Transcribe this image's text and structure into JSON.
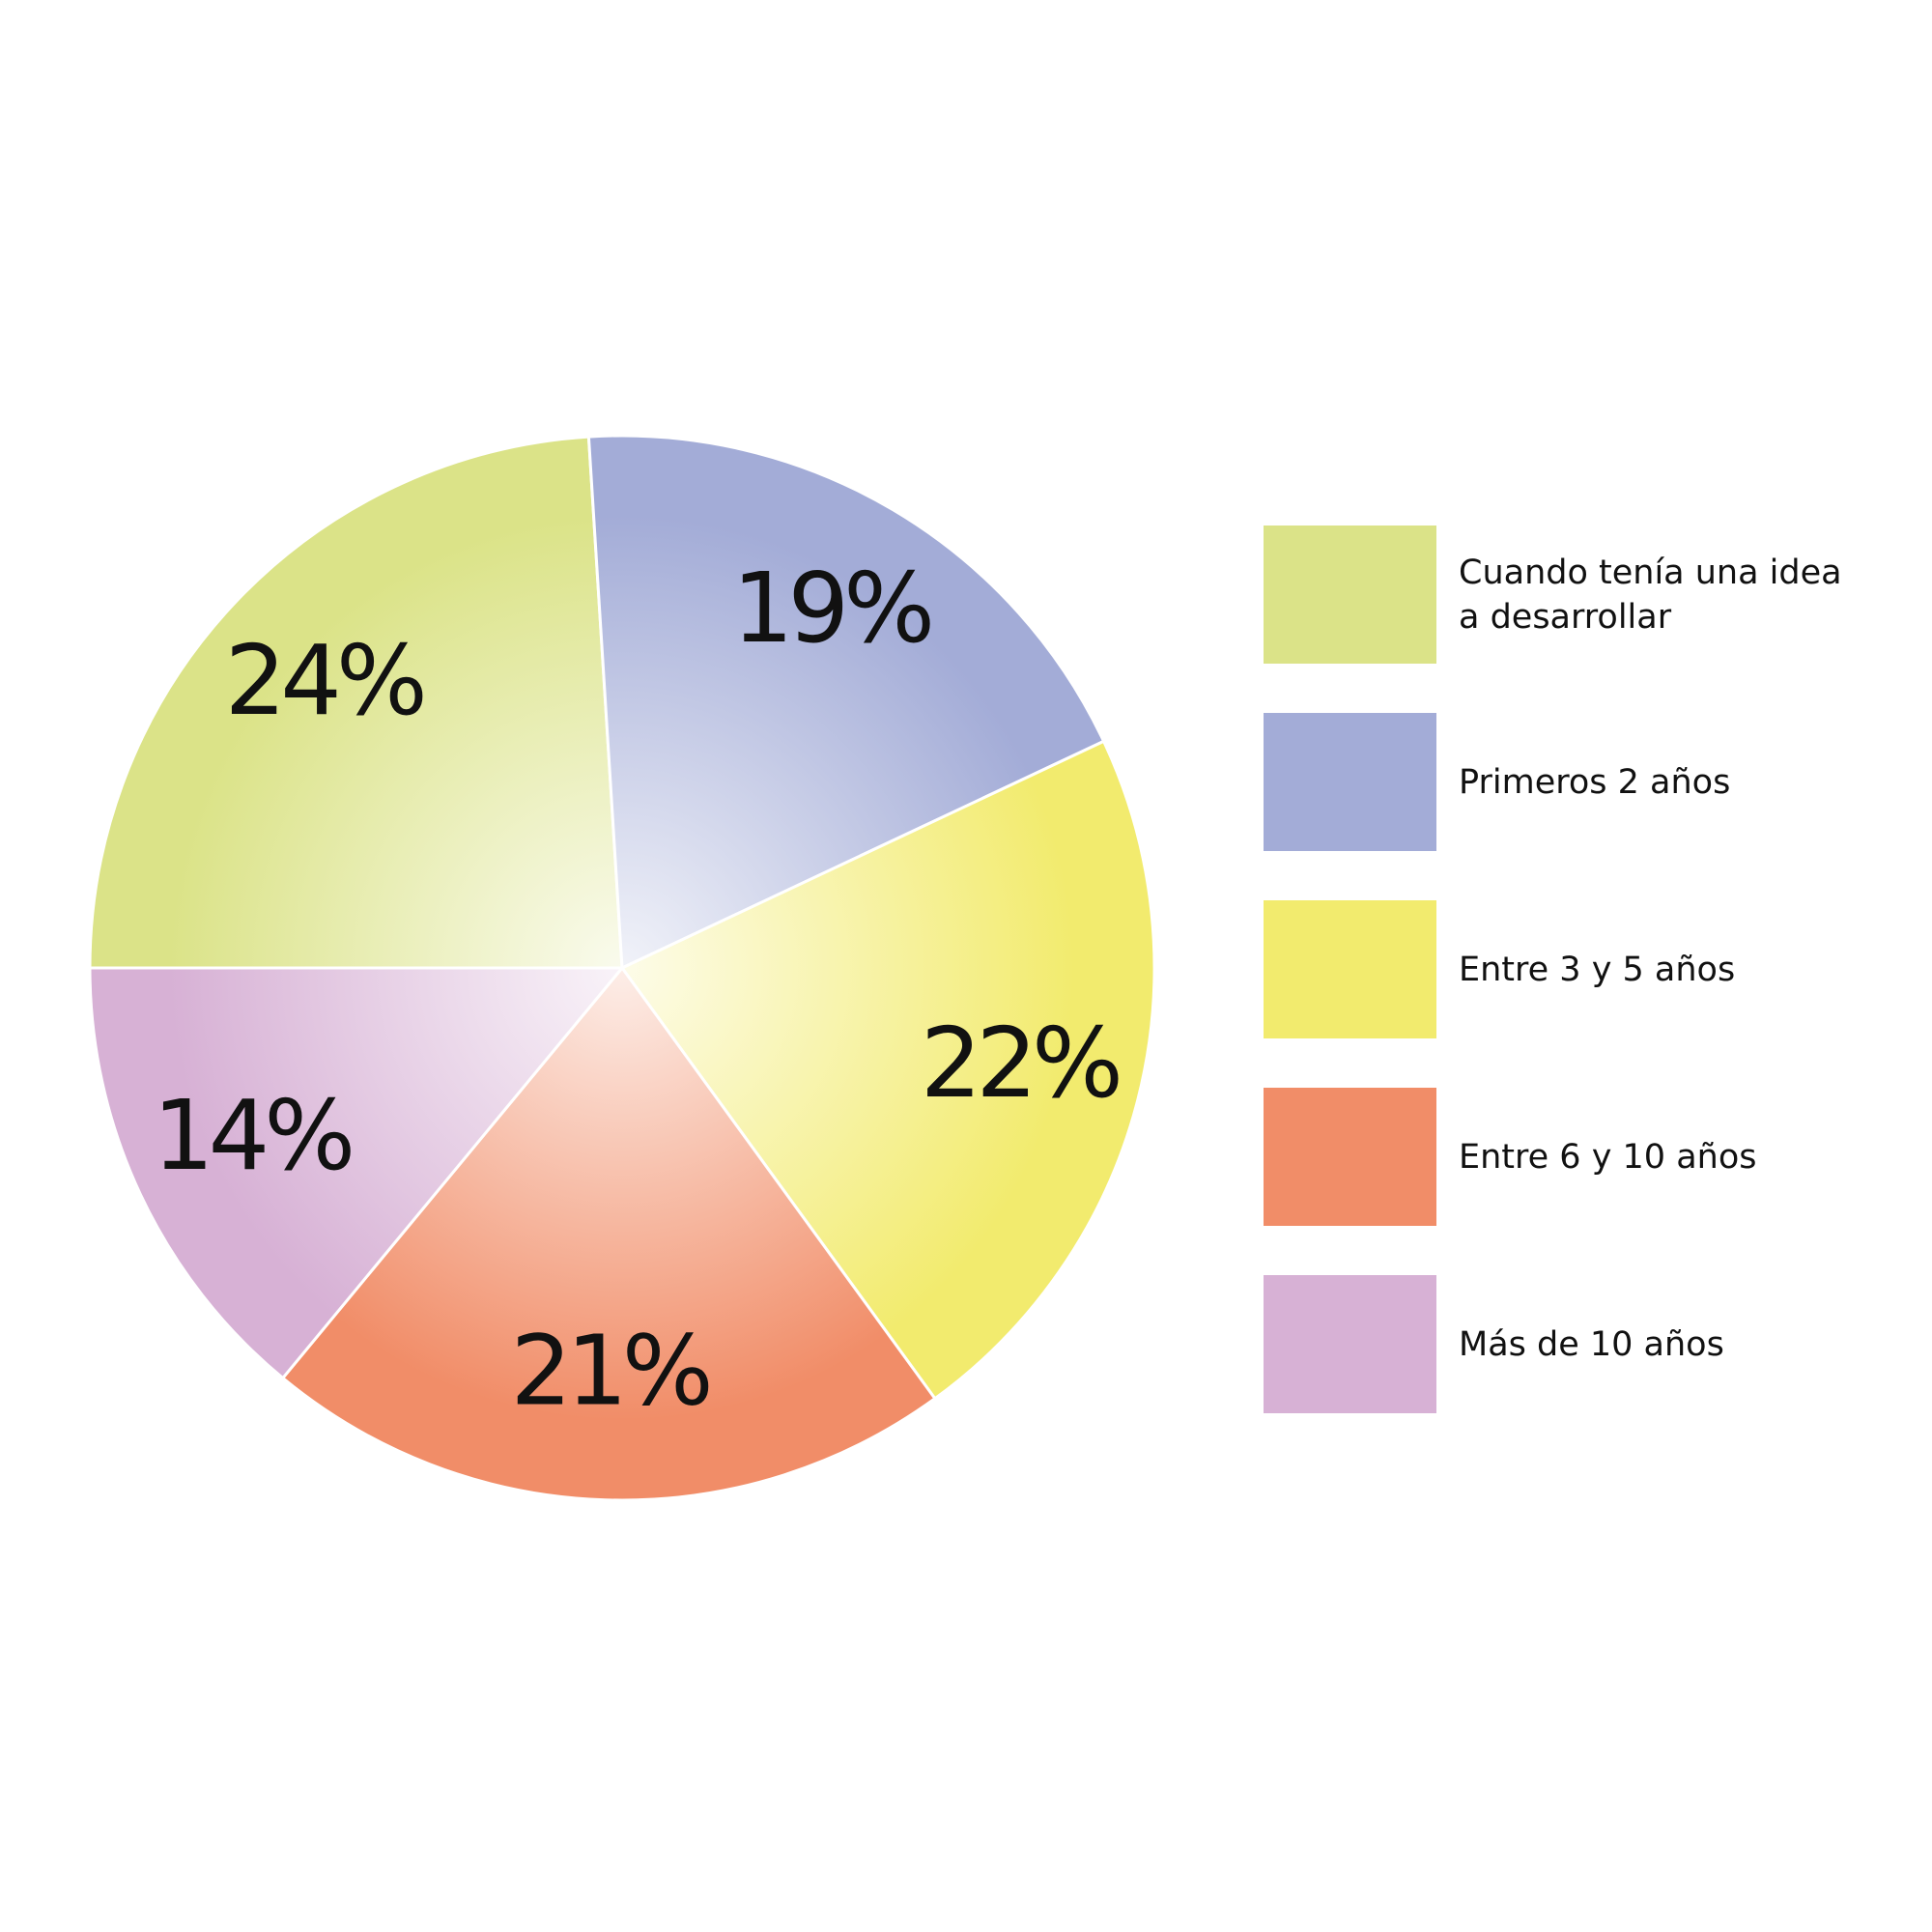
{
  "chart_data": {
    "type": "pie",
    "categories": [
      "Cuando tenía una idea a desarrollar",
      "Primeros 2 años",
      "Entre 3 y 5 años",
      "Entre 6 y 10 años",
      "Más de 10 años"
    ],
    "values": [
      24,
      19,
      22,
      21,
      14
    ],
    "value_labels": [
      "24%",
      "19%",
      "22%",
      "21%",
      "14%"
    ],
    "colors": [
      "#dbe388",
      "#a3acd7",
      "#f2eb6e",
      "#f18d68",
      "#d7b1d5"
    ],
    "legend": "right"
  }
}
